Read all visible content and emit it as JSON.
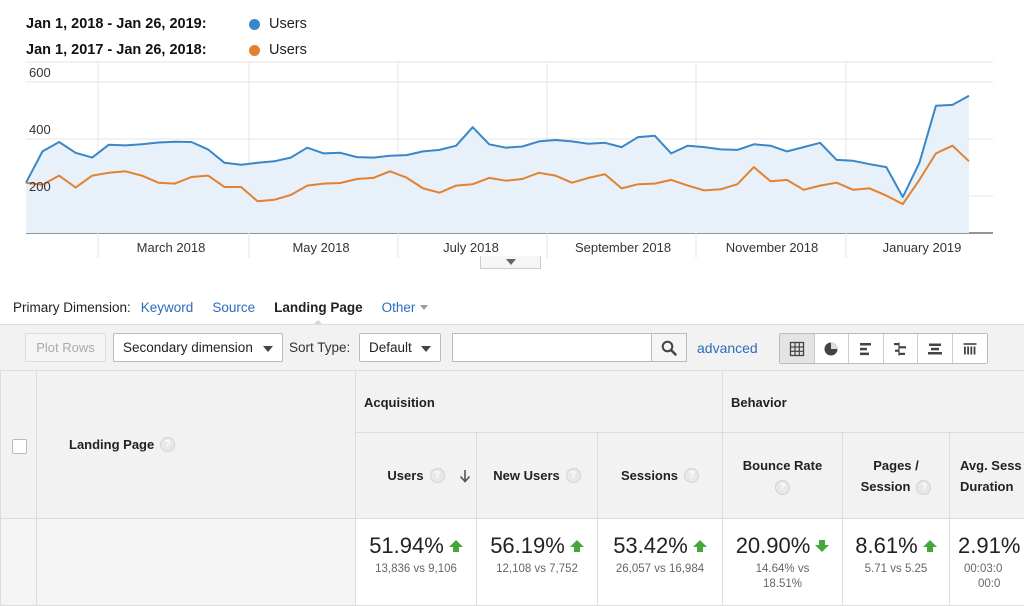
{
  "legend": {
    "items": [
      {
        "range": "Jan 1, 2018 - Jan 26, 2019:",
        "name": "Users",
        "color": "#3a87c8"
      },
      {
        "range": "Jan 1, 2017 - Jan 26, 2018:",
        "name": "Users",
        "color": "#e3822e"
      }
    ]
  },
  "chart_data": {
    "type": "line",
    "yticks": [
      "600",
      "400",
      "200"
    ],
    "ylim": [
      0,
      600
    ],
    "xticks": [
      "March 2018",
      "May 2018",
      "July 2018",
      "September 2018",
      "November 2018",
      "January 2019"
    ],
    "grid": true,
    "area_fill_series": 0,
    "series": [
      {
        "name": "Users",
        "color": "#3a87c8",
        "values": [
          215,
          325,
          358,
          320,
          303,
          348,
          346,
          350,
          356,
          359,
          358,
          332,
          285,
          278,
          285,
          290,
          303,
          338,
          318,
          320,
          305,
          303,
          310,
          312,
          325,
          330,
          345,
          410,
          350,
          338,
          342,
          360,
          365,
          360,
          352,
          355,
          340,
          375,
          380,
          318,
          345,
          340,
          332,
          330,
          350,
          345,
          325,
          340,
          355,
          295,
          292,
          280,
          270,
          165,
          285,
          485,
          488,
          520
        ]
      },
      {
        "name": "Users",
        "color": "#e3822e",
        "values": [
          215,
          208,
          240,
          198,
          240,
          250,
          255,
          240,
          215,
          212,
          235,
          240,
          200,
          200,
          150,
          155,
          172,
          205,
          212,
          214,
          228,
          232,
          255,
          233,
          195,
          180,
          205,
          210,
          232,
          222,
          228,
          250,
          240,
          215,
          232,
          245,
          195,
          210,
          212,
          225,
          205,
          188,
          192,
          210,
          270,
          220,
          225,
          190,
          205,
          215,
          190,
          195,
          170,
          140,
          225,
          318,
          345,
          290
        ]
      }
    ]
  },
  "dimensions": {
    "label": "Primary Dimension:",
    "items": [
      "Keyword",
      "Source"
    ],
    "active": "Landing Page",
    "other": "Other"
  },
  "toolbar": {
    "plot_rows": "Plot Rows",
    "secondary_dimension": "Secondary dimension",
    "sort_type_label": "Sort Type:",
    "sort_type_value": "Default",
    "search_value": "",
    "advanced": "advanced"
  },
  "table": {
    "landing_page_header": "Landing Page",
    "groups": {
      "acquisition": "Acquisition",
      "behavior": "Behavior"
    },
    "columns": {
      "users": "Users",
      "new_users": "New Users",
      "sessions": "Sessions",
      "bounce_rate": "Bounce Rate",
      "pages_session_1": "Pages /",
      "pages_session_2": "Session",
      "avg_session_1": "Avg. Sess",
      "avg_session_2": "Duration"
    },
    "totals": {
      "users": {
        "pct": "51.94%",
        "sub": "13,836 vs 9,106"
      },
      "new_users": {
        "pct": "56.19%",
        "sub": "12,108 vs 7,752"
      },
      "sessions": {
        "pct": "53.42%",
        "sub": "26,057 vs 16,984"
      },
      "bounce_rate": {
        "pct": "20.90%",
        "sub1": "14.64% vs",
        "sub2": "18.51%"
      },
      "pages_session": {
        "pct": "8.61%",
        "sub": "5.71 vs 5.25"
      },
      "avg_session": {
        "pct": "2.91%",
        "sub1": "00:03:0",
        "sub2": "00:0"
      }
    },
    "help_glyph": "?"
  }
}
